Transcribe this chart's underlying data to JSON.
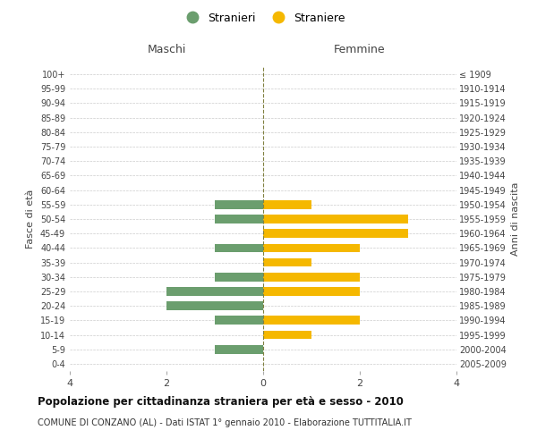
{
  "age_groups": [
    "0-4",
    "5-9",
    "10-14",
    "15-19",
    "20-24",
    "25-29",
    "30-34",
    "35-39",
    "40-44",
    "45-49",
    "50-54",
    "55-59",
    "60-64",
    "65-69",
    "70-74",
    "75-79",
    "80-84",
    "85-89",
    "90-94",
    "95-99",
    "100+"
  ],
  "birth_years": [
    "2005-2009",
    "2000-2004",
    "1995-1999",
    "1990-1994",
    "1985-1989",
    "1980-1984",
    "1975-1979",
    "1970-1974",
    "1965-1969",
    "1960-1964",
    "1955-1959",
    "1950-1954",
    "1945-1949",
    "1940-1944",
    "1935-1939",
    "1930-1934",
    "1925-1929",
    "1920-1924",
    "1915-1919",
    "1910-1914",
    "≤ 1909"
  ],
  "males": [
    0,
    1,
    0,
    1,
    2,
    2,
    1,
    0,
    1,
    0,
    1,
    1,
    0,
    0,
    0,
    0,
    0,
    0,
    0,
    0,
    0
  ],
  "females": [
    0,
    0,
    1,
    2,
    0,
    2,
    2,
    1,
    2,
    3,
    3,
    1,
    0,
    0,
    0,
    0,
    0,
    0,
    0,
    0,
    0
  ],
  "color_male": "#6b9e6e",
  "color_female": "#f5b800",
  "xlim": 4,
  "title": "Popolazione per cittadinanza straniera per età e sesso - 2010",
  "subtitle": "COMUNE DI CONZANO (AL) - Dati ISTAT 1° gennaio 2010 - Elaborazione TUTTITALIA.IT",
  "ylabel_left": "Fasce di età",
  "ylabel_right": "Anni di nascita",
  "legend_male": "Stranieri",
  "legend_female": "Straniere",
  "header_left": "Maschi",
  "header_right": "Femmine",
  "background_color": "#ffffff",
  "grid_color": "#cccccc"
}
